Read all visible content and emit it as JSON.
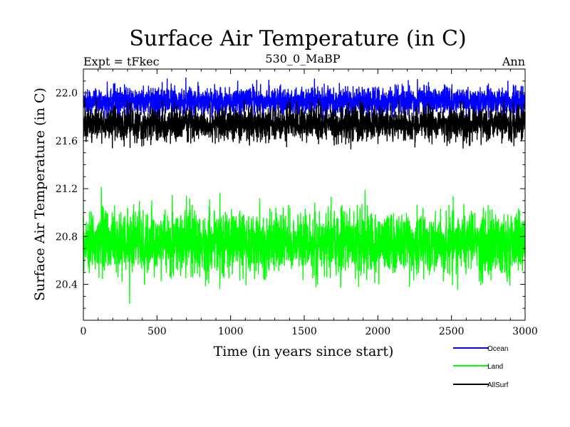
{
  "chart_data": {
    "type": "line",
    "title": "Surface Air Temperature (in C)",
    "subtitle_left": "Expt = tFkec",
    "subtitle_center": "530_0_MaBP",
    "subtitle_right": "Ann",
    "xlabel": "Time (in years since start)",
    "ylabel": "Surface Air Temperature (in C)",
    "xlim": [
      0,
      3000
    ],
    "ylim": [
      20.1,
      22.2
    ],
    "x_ticks": [
      0,
      500,
      1000,
      1500,
      2000,
      2500,
      3000
    ],
    "x_tick_labels": [
      "0",
      "500",
      "1000",
      "1500",
      "2000",
      "2500",
      "3000"
    ],
    "y_ticks": [
      20.4,
      20.8,
      21.2,
      21.6,
      22.0
    ],
    "y_tick_labels": [
      "20.4",
      "20.8",
      "21.2",
      "21.6",
      "22.0"
    ],
    "grid": false,
    "legend_position": "bottom-right, below plot",
    "series": [
      {
        "name": "Ocean",
        "color": "#0000ff",
        "mean": 21.93,
        "spread": 0.06,
        "min": 21.74,
        "max": 22.15,
        "n_points": 3000
      },
      {
        "name": "Land",
        "color": "#00ff00",
        "mean": 20.75,
        "spread": 0.13,
        "min": 20.23,
        "max": 21.25,
        "n_points": 3000
      },
      {
        "name": "AllSurf",
        "color": "#000000",
        "mean": 21.74,
        "spread": 0.07,
        "min": 21.47,
        "max": 21.96,
        "n_points": 3000
      }
    ]
  }
}
